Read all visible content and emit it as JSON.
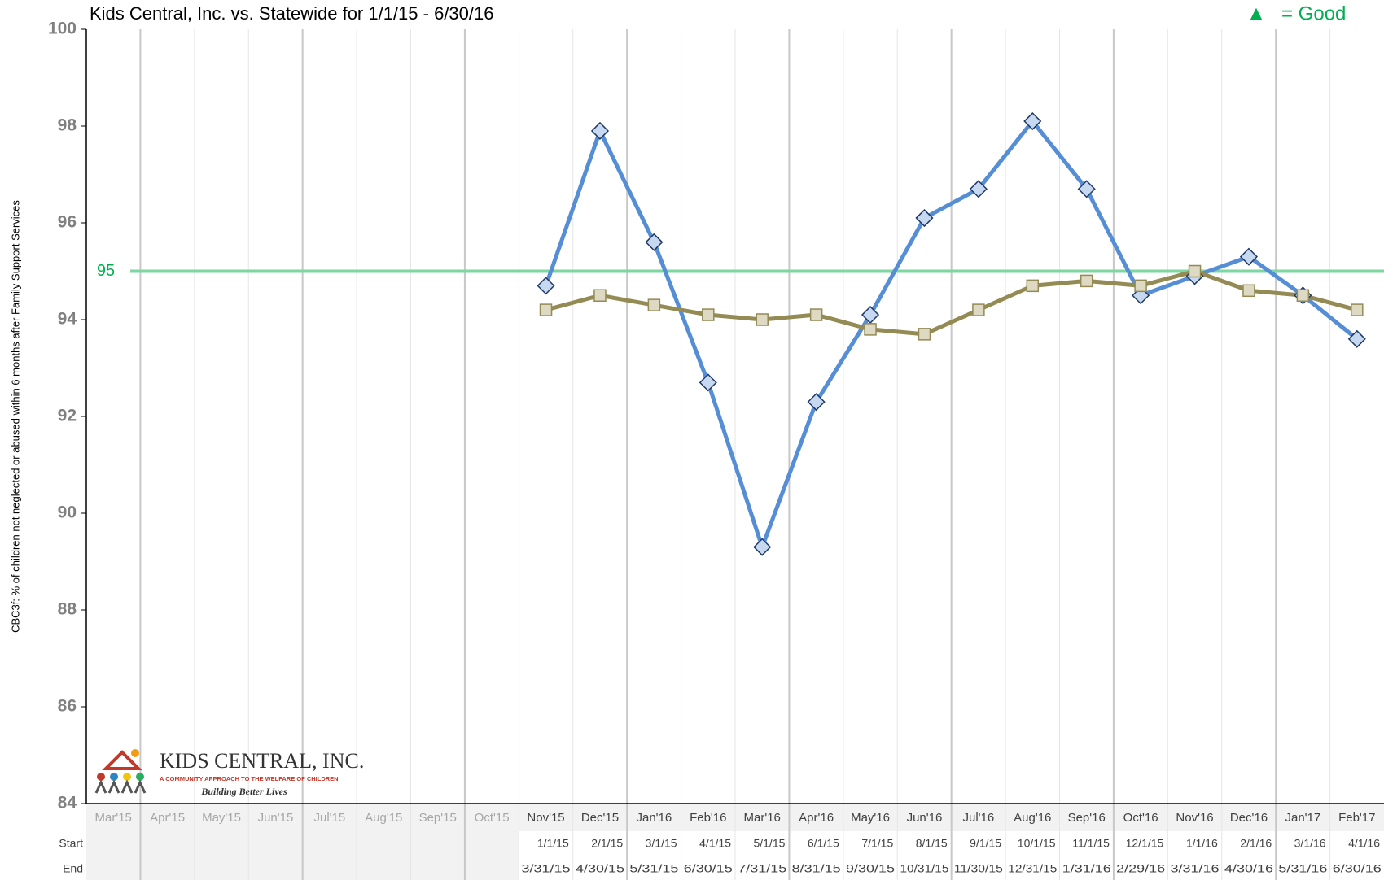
{
  "chart_data": {
    "type": "line",
    "title": "Kids Central, Inc. vs. Statewide for 1/1/15 - 6/30/16",
    "y_label": "CBC3f: % of children not neglected or abused within 6 months after Family Support Services",
    "legend_note": {
      "symbol": "▲",
      "text": "= Good",
      "color": "#00b050"
    },
    "categories": [
      "Mar'15",
      "Apr'15",
      "May'15",
      "Jun'15",
      "Jul'15",
      "Aug'15",
      "Sep'15",
      "Oct'15",
      "Nov'15",
      "Dec'15",
      "Jan'16",
      "Feb'16",
      "Mar'16",
      "Apr'16",
      "May'16",
      "Jun'16",
      "Jul'16",
      "Aug'16",
      "Sep'16",
      "Oct'16",
      "Nov'16",
      "Dec'16",
      "Jan'17",
      "Feb'17"
    ],
    "series": [
      {
        "color": "#558ed5",
        "marker": "diamond",
        "values": [
          null,
          null,
          null,
          null,
          null,
          null,
          null,
          null,
          94.7,
          97.9,
          95.6,
          92.7,
          89.3,
          92.3,
          94.1,
          96.1,
          96.7,
          98.1,
          96.7,
          94.5,
          94.9,
          95.3,
          94.5,
          93.6
        ]
      },
      {
        "color": "#948a54",
        "marker": "square",
        "values": [
          null,
          null,
          null,
          null,
          null,
          null,
          null,
          null,
          94.2,
          94.5,
          94.3,
          94.1,
          94.0,
          94.1,
          93.8,
          93.7,
          94.2,
          94.7,
          94.8,
          94.7,
          95.0,
          94.6,
          94.5,
          94.2
        ]
      }
    ],
    "target": {
      "value": 95,
      "label": "95",
      "color": "#7ed6a0"
    },
    "ylim": [
      84,
      100
    ],
    "yticks": [
      84,
      86,
      88,
      90,
      92,
      94,
      96,
      98,
      100
    ],
    "grid": false,
    "table": {
      "row_labels": [
        "Start",
        "End"
      ],
      "start": [
        null,
        null,
        null,
        null,
        null,
        null,
        null,
        null,
        "1/1/15",
        "2/1/15",
        "3/1/15",
        "4/1/15",
        "5/1/15",
        "6/1/15",
        "7/1/15",
        "8/1/15",
        "9/1/15",
        "10/1/15",
        "11/1/15",
        "12/1/15",
        "1/1/16",
        "2/1/16",
        "3/1/16",
        "4/1/16"
      ],
      "end": [
        null,
        null,
        null,
        null,
        null,
        null,
        null,
        null,
        "3/31/15",
        "4/30/15",
        "5/31/15",
        "6/30/15",
        "7/31/15",
        "8/31/15",
        "9/30/15",
        "10/31/15",
        "11/30/15",
        "12/31/15",
        "1/31/16",
        "2/29/16",
        "3/31/16",
        "4/30/16",
        "5/31/16",
        "6/30/16"
      ]
    },
    "logo": {
      "name": "KIDS CENTRAL, INC.",
      "tagline": "A COMMUNITY APPROACH TO THE WELFARE OF CHILDREN",
      "motto": "Building Better Lives"
    }
  }
}
